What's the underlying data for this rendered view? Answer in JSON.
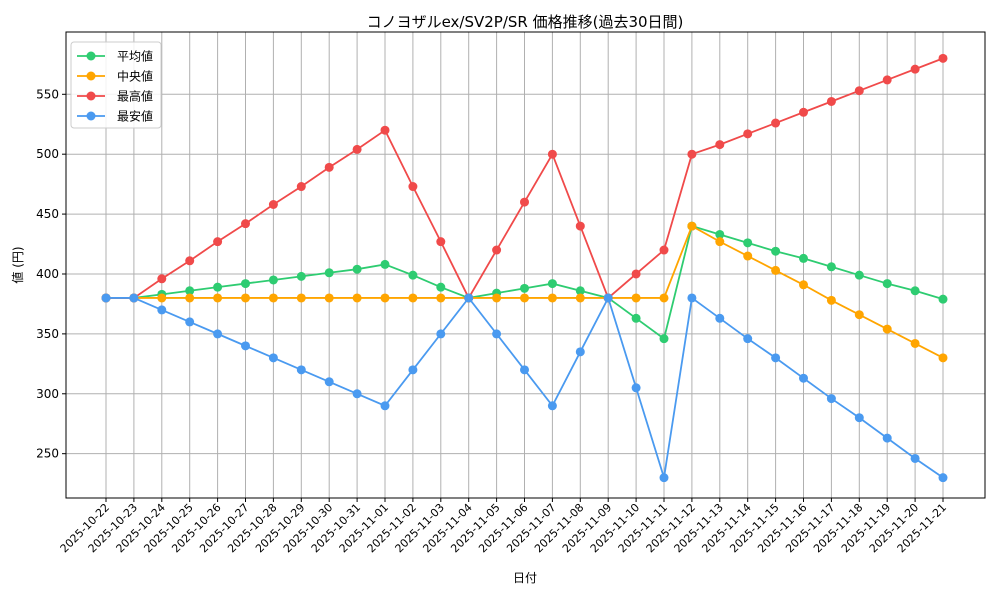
{
  "chart_data": {
    "type": "line",
    "title": "コノヨザルex/SV2P/SR 価格推移(過去30日間)",
    "xlabel": "日付",
    "ylabel": "値 (円)",
    "ylim": [
      213,
      602
    ],
    "yticks": [
      250,
      300,
      350,
      400,
      450,
      500,
      550
    ],
    "grid": true,
    "legend_position": "upper left",
    "categories": [
      "2025-10-22",
      "2025-10-23",
      "2025-10-24",
      "2025-10-25",
      "2025-10-26",
      "2025-10-27",
      "2025-10-28",
      "2025-10-29",
      "2025-10-30",
      "2025-10-31",
      "2025-11-01",
      "2025-11-02",
      "2025-11-03",
      "2025-11-04",
      "2025-11-05",
      "2025-11-06",
      "2025-11-07",
      "2025-11-08",
      "2025-11-09",
      "2025-11-10",
      "2025-11-11",
      "2025-11-12",
      "2025-11-13",
      "2025-11-14",
      "2025-11-15",
      "2025-11-16",
      "2025-11-17",
      "2025-11-18",
      "2025-11-19",
      "2025-11-20",
      "2025-11-21"
    ],
    "series": [
      {
        "name": "平均値",
        "color": "#2ecc71",
        "values": [
          380,
          380,
          383,
          386,
          389,
          392,
          395,
          398,
          401,
          404,
          408,
          399,
          389,
          380,
          384,
          388,
          392,
          386,
          380,
          363,
          346,
          440,
          433,
          426,
          419,
          413,
          406,
          399,
          392,
          386,
          379
        ]
      },
      {
        "name": "中央値",
        "color": "#ffa500",
        "values": [
          380,
          380,
          380,
          380,
          380,
          380,
          380,
          380,
          380,
          380,
          380,
          380,
          380,
          380,
          380,
          380,
          380,
          380,
          380,
          380,
          380,
          440,
          427,
          415,
          403,
          391,
          378,
          366,
          354,
          342,
          330
        ]
      },
      {
        "name": "最高値",
        "color": "#f04a4a",
        "values": [
          380,
          380,
          396,
          411,
          427,
          442,
          458,
          473,
          489,
          504,
          520,
          473,
          427,
          380,
          420,
          460,
          500,
          440,
          380,
          400,
          420,
          500,
          508,
          517,
          526,
          535,
          544,
          553,
          562,
          571,
          580
        ]
      },
      {
        "name": "最安値",
        "color": "#4a9af0",
        "values": [
          380,
          380,
          370,
          360,
          350,
          340,
          330,
          320,
          310,
          300,
          290,
          320,
          350,
          380,
          350,
          320,
          290,
          335,
          380,
          305,
          230,
          380,
          363,
          346,
          330,
          313,
          296,
          280,
          263,
          246,
          230
        ]
      }
    ]
  }
}
